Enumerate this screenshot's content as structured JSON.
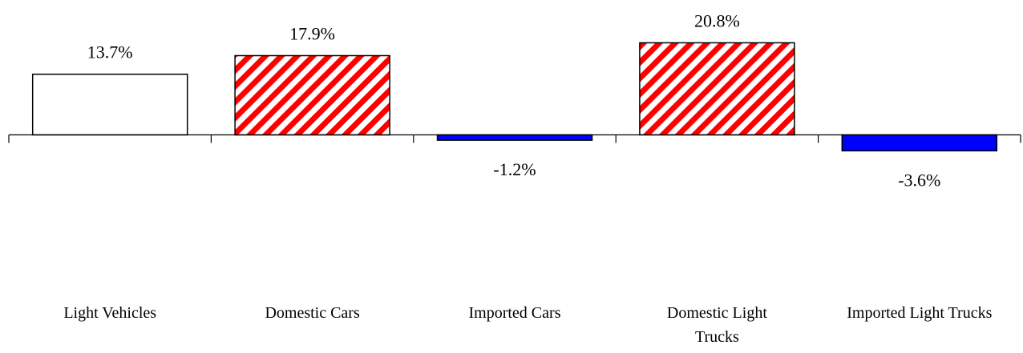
{
  "chart_data": {
    "type": "bar",
    "categories": [
      "Light Vehicles",
      "Domestic Cars",
      "Imported Cars",
      "Domestic Light Trucks",
      "Imported Light Trucks"
    ],
    "category_lines": [
      [
        "Light Vehicles"
      ],
      [
        "Domestic Cars"
      ],
      [
        "Imported Cars"
      ],
      [
        "Domestic Light",
        "Trucks"
      ],
      [
        "Imported Light Trucks"
      ]
    ],
    "values": [
      13.7,
      17.9,
      -1.2,
      20.8,
      -3.6
    ],
    "data_labels": [
      "13.7%",
      "17.9%",
      "-1.2%",
      "20.8%",
      "-3.6%"
    ],
    "bar_styles": [
      "outline",
      "hatched",
      "solid",
      "hatched",
      "solid"
    ],
    "colors": {
      "outline_fill": "#ffffff",
      "outline_stroke": "#000000",
      "hatch_stripe": "#ff0000",
      "hatch_background": "#ffffff",
      "solid_fill": "#0000ff"
    },
    "title": "",
    "xlabel": "",
    "ylabel": "",
    "ylim": [
      -10,
      25
    ],
    "grid": false,
    "legend": "none"
  }
}
